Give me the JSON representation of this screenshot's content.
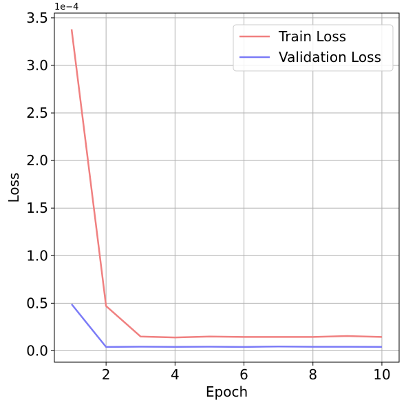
{
  "chart_data": {
    "type": "line",
    "xlabel": "Epoch",
    "ylabel": "Loss",
    "y_offset_label": "1e−4",
    "x": [
      1,
      2,
      3,
      4,
      5,
      6,
      7,
      8,
      9,
      10
    ],
    "series": [
      {
        "name": "Train Loss",
        "color": "#f08080",
        "values": [
          3.38,
          0.47,
          0.15,
          0.14,
          0.15,
          0.145,
          0.145,
          0.145,
          0.155,
          0.145
        ]
      },
      {
        "name": "Validation Loss",
        "color": "#7b7bf7",
        "values": [
          0.49,
          0.04,
          0.043,
          0.041,
          0.043,
          0.04,
          0.045,
          0.042,
          0.042,
          0.041
        ]
      }
    ],
    "xlim": [
      0.5,
      10.5
    ],
    "ylim": [
      -0.12,
      3.55
    ],
    "xticks": [
      2,
      4,
      6,
      8,
      10
    ],
    "xtick_labels": [
      "2",
      "4",
      "6",
      "8",
      "10"
    ],
    "yticks": [
      0.0,
      0.5,
      1.0,
      1.5,
      2.0,
      2.5,
      3.0,
      3.5
    ],
    "ytick_labels": [
      "0.0",
      "0.5",
      "1.0",
      "1.5",
      "2.0",
      "2.5",
      "3.0",
      "3.5"
    ],
    "grid": true,
    "legend_position": "top-right"
  }
}
